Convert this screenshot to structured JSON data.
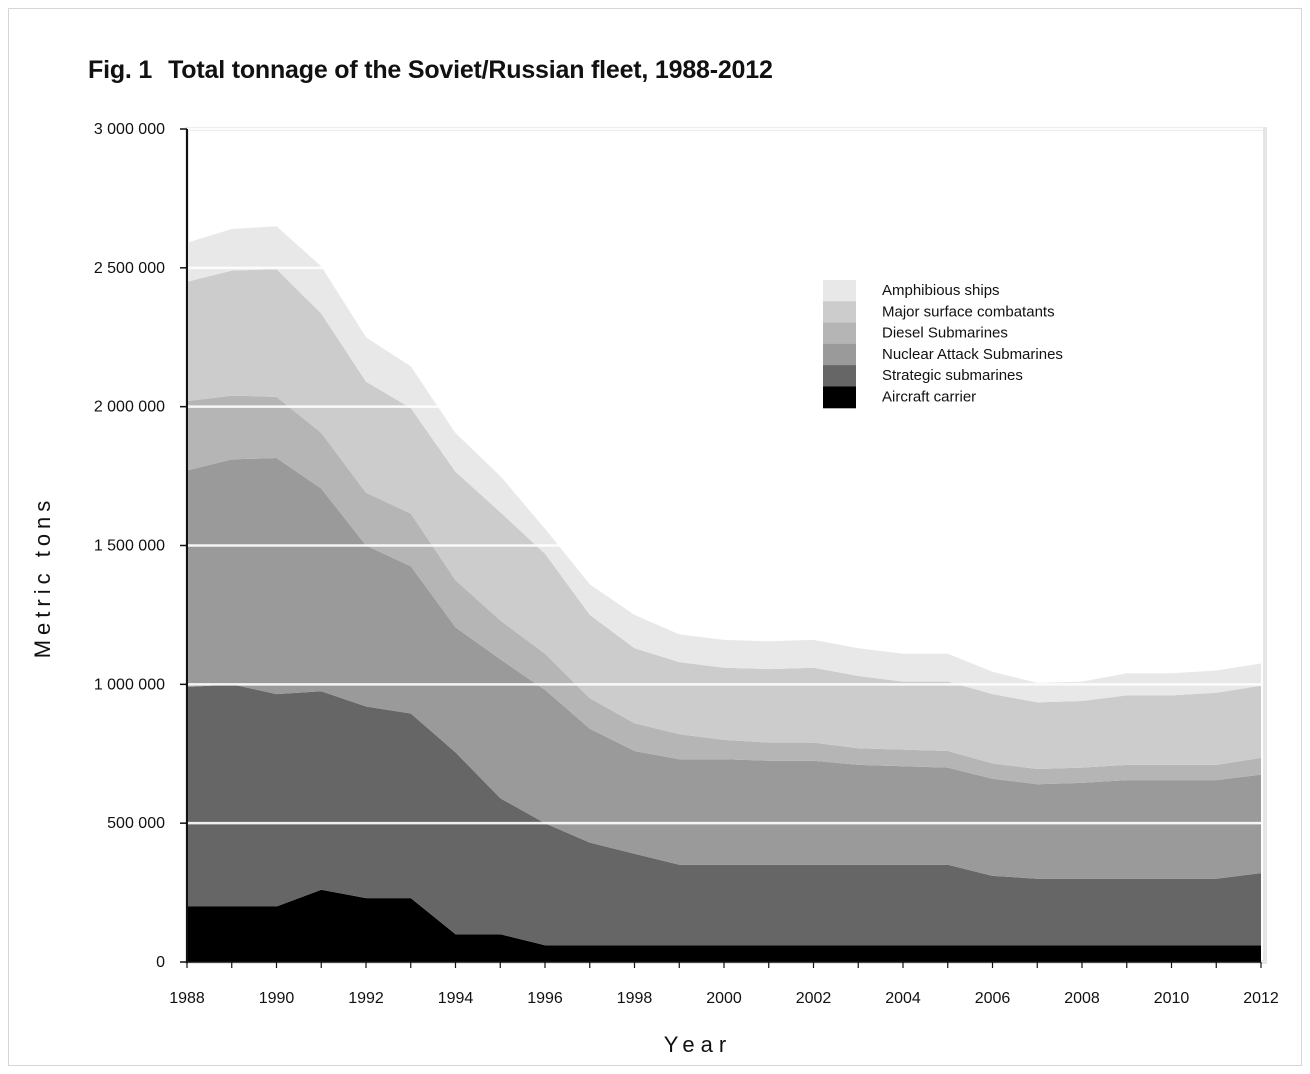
{
  "page": {
    "fig_label": "Fig. 1",
    "title": "Total tonnage of the Soviet/Russian fleet, 1988-2012"
  },
  "chart_data": {
    "type": "area",
    "stacked": true,
    "title": "Total tonnage of the Soviet/Russian fleet, 1988-2012",
    "xlabel": "Year",
    "ylabel": "Metric tons",
    "xlim": [
      1988,
      2012
    ],
    "ylim": [
      0,
      3000000
    ],
    "x": [
      1988,
      1989,
      1990,
      1991,
      1992,
      1993,
      1994,
      1995,
      1996,
      1997,
      1998,
      1999,
      2000,
      2001,
      2002,
      2003,
      2004,
      2005,
      2006,
      2007,
      2008,
      2009,
      2010,
      2011,
      2012
    ],
    "x_tick_labels": [
      "1988",
      "1990",
      "1992",
      "1994",
      "1996",
      "1998",
      "2000",
      "2002",
      "2004",
      "2006",
      "2008",
      "2010",
      "2012"
    ],
    "y_ticks": [
      0,
      500000,
      1000000,
      1500000,
      2000000,
      2500000,
      3000000
    ],
    "y_tick_labels": [
      "0",
      "500 000",
      "1 000 000",
      "1 500 000",
      "2 000 000",
      "2 500 000",
      "3 000 000"
    ],
    "grid": "horizontal",
    "legend_position": "top-right",
    "series": [
      {
        "name": "Aircraft carrier",
        "color": "#000000",
        "values": [
          200000,
          200000,
          200000,
          260000,
          230000,
          230000,
          100000,
          100000,
          60000,
          60000,
          60000,
          60000,
          60000,
          60000,
          60000,
          60000,
          60000,
          60000,
          60000,
          60000,
          60000,
          60000,
          60000,
          60000,
          60000
        ]
      },
      {
        "name": "Strategic submarines",
        "color": "#666666",
        "values": [
          790000,
          800000,
          765000,
          715000,
          690000,
          665000,
          655000,
          490000,
          440000,
          370000,
          330000,
          290000,
          290000,
          290000,
          290000,
          290000,
          290000,
          290000,
          250000,
          240000,
          240000,
          240000,
          240000,
          240000,
          260000
        ]
      },
      {
        "name": "Nuclear Attack Submarines",
        "color": "#9a9a9a",
        "values": [
          780000,
          810000,
          850000,
          730000,
          580000,
          530000,
          450000,
          500000,
          480000,
          410000,
          370000,
          380000,
          380000,
          375000,
          375000,
          360000,
          355000,
          350000,
          350000,
          340000,
          345000,
          355000,
          355000,
          355000,
          355000
        ]
      },
      {
        "name": "Diesel Submarines",
        "color": "#b5b5b5",
        "values": [
          250000,
          230000,
          220000,
          200000,
          190000,
          190000,
          170000,
          140000,
          130000,
          110000,
          100000,
          90000,
          70000,
          65000,
          65000,
          60000,
          60000,
          60000,
          55000,
          55000,
          55000,
          55000,
          55000,
          55000,
          60000
        ]
      },
      {
        "name": "Major surface combatants",
        "color": "#cccccc",
        "values": [
          430000,
          450000,
          460000,
          430000,
          400000,
          380000,
          390000,
          390000,
          360000,
          300000,
          270000,
          260000,
          260000,
          265000,
          270000,
          260000,
          245000,
          250000,
          250000,
          240000,
          240000,
          250000,
          250000,
          260000,
          260000
        ]
      },
      {
        "name": "Amphibious ships",
        "color": "#e8e8e8",
        "values": [
          140000,
          150000,
          155000,
          170000,
          160000,
          150000,
          140000,
          130000,
          90000,
          110000,
          120000,
          100000,
          100000,
          100000,
          100000,
          100000,
          100000,
          100000,
          80000,
          70000,
          70000,
          80000,
          80000,
          80000,
          80000
        ]
      }
    ]
  }
}
